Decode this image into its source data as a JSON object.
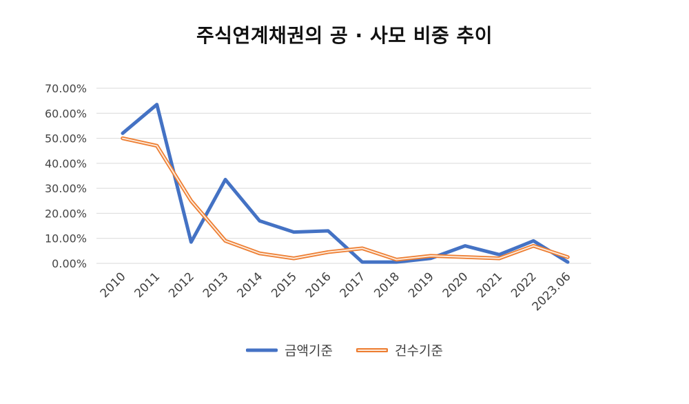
{
  "chart_data": {
    "type": "line",
    "title": "주식연계채권의 공 · 사모 비중 추이",
    "categories": [
      "2010",
      "2011",
      "2012",
      "2013",
      "2014",
      "2015",
      "2016",
      "2017",
      "2018",
      "2019",
      "2020",
      "2021",
      "2022",
      "2023.06"
    ],
    "series": [
      {
        "name": "금액기준",
        "color": "#4472C4",
        "style": "solid",
        "values": [
          52.0,
          63.5,
          8.5,
          33.5,
          17.0,
          12.5,
          13.0,
          0.5,
          0.5,
          2.0,
          7.0,
          3.5,
          9.0,
          0.5
        ]
      },
      {
        "name": "건수기준",
        "color": "#ED7D31",
        "style": "outlined",
        "highlight_color": "#FDEADA",
        "values": [
          50.0,
          47.0,
          25.0,
          9.0,
          4.0,
          2.0,
          4.5,
          6.0,
          1.5,
          3.0,
          2.5,
          2.0,
          7.0,
          2.5
        ]
      }
    ],
    "ylim": [
      0,
      70
    ],
    "ytick_step": 10,
    "ytick_labels": [
      "0.00%",
      "10.00%",
      "20.00%",
      "30.00%",
      "40.00%",
      "50.00%",
      "60.00%",
      "70.00%"
    ],
    "xlabel": "",
    "ylabel": "",
    "grid": "horizontal",
    "gridline_color": "#D9D9D9",
    "legend_position": "bottom",
    "x_label_rotation": -45
  }
}
